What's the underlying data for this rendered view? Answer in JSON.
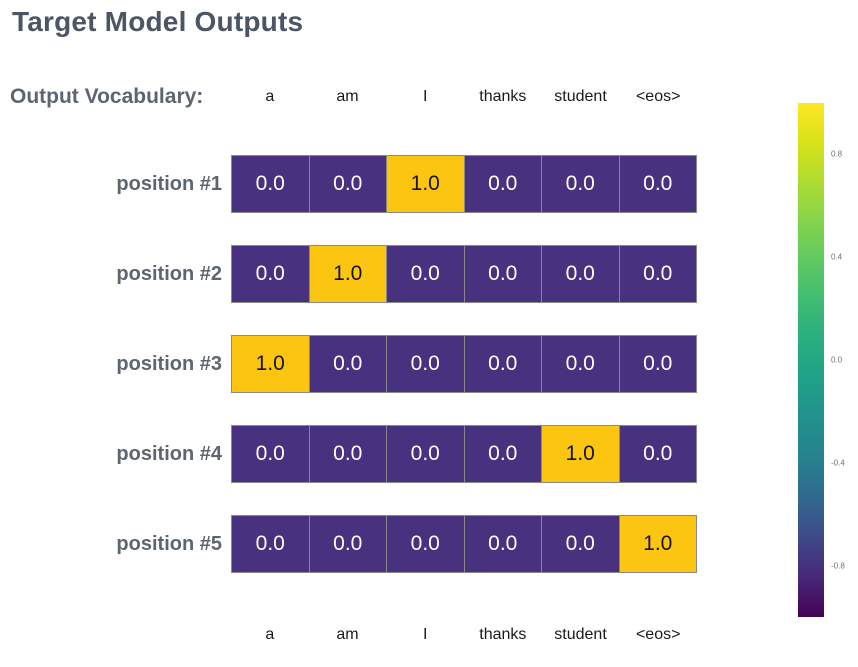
{
  "title": "Target Model Outputs",
  "vocab_header_label": "Output Vocabulary:",
  "vocabulary": [
    "a",
    "am",
    "I",
    "thanks",
    "student",
    "<eos>"
  ],
  "rows": [
    {
      "label": "position #1",
      "values": [
        "0.0",
        "0.0",
        "1.0",
        "0.0",
        "0.0",
        "0.0"
      ]
    },
    {
      "label": "position #2",
      "values": [
        "0.0",
        "1.0",
        "0.0",
        "0.0",
        "0.0",
        "0.0"
      ]
    },
    {
      "label": "position #3",
      "values": [
        "1.0",
        "0.0",
        "0.0",
        "0.0",
        "0.0",
        "0.0"
      ]
    },
    {
      "label": "position #4",
      "values": [
        "0.0",
        "0.0",
        "0.0",
        "0.0",
        "1.0",
        "0.0"
      ]
    },
    {
      "label": "position #5",
      "values": [
        "0.0",
        "0.0",
        "0.0",
        "0.0",
        "0.0",
        "1.0"
      ]
    }
  ],
  "colorbar": {
    "ticks": [
      "0.8",
      "0.4",
      "0.0",
      "-0.4",
      "-0.8"
    ],
    "range": [
      -1.0,
      1.0
    ],
    "colormap": "viridis"
  },
  "colors": {
    "cell_low": "#48317e",
    "cell_high": "#fcc511",
    "cell_text_low": "#ffffff",
    "cell_text_high": "#151515",
    "title_text": "#4b5563",
    "label_text": "#5d6570"
  },
  "chart_data": {
    "type": "heatmap",
    "title": "Target Model Outputs",
    "columns": [
      "a",
      "am",
      "I",
      "thanks",
      "student",
      "<eos>"
    ],
    "row_labels": [
      "position #1",
      "position #2",
      "position #3",
      "position #4",
      "position #5"
    ],
    "values": [
      [
        0.0,
        0.0,
        1.0,
        0.0,
        0.0,
        0.0
      ],
      [
        0.0,
        1.0,
        0.0,
        0.0,
        0.0,
        0.0
      ],
      [
        1.0,
        0.0,
        0.0,
        0.0,
        0.0,
        0.0
      ],
      [
        0.0,
        0.0,
        0.0,
        0.0,
        1.0,
        0.0
      ],
      [
        0.0,
        0.0,
        0.0,
        0.0,
        0.0,
        1.0
      ]
    ],
    "colormap": "viridis",
    "colorbar_ticks": [
      0.8,
      0.4,
      0.0,
      -0.4,
      -0.8
    ],
    "colorbar_range": [
      -1.0,
      1.0
    ],
    "legend_position": "right",
    "grid": false
  }
}
